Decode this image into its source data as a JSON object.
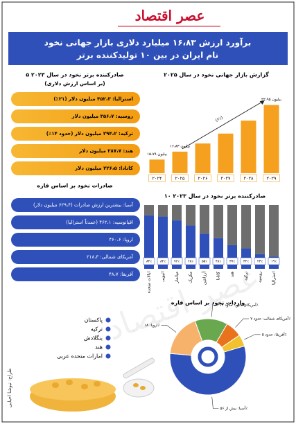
{
  "header": {
    "logo": "عصر اقتصاد",
    "title_lines": [
      "برآورد ارزش ۱۶،۸۳ میلیارد دلاری بازار جهانی نخود",
      "نام ایران در بین ۱۰ تولیدکننده برتر"
    ]
  },
  "exporters": {
    "title": "۵ صادرکننده برتر نخود در سال ۲۰۲۳",
    "subtitle": "(بر اساس ارزش دلاری)",
    "items": [
      "استرالیا: ۴۵۲،۳ میلیون دلار (۲۱٪)",
      "روسیه: ۳۵۶،۷ میلیون دلار",
      "ترکیه: ۲۹۴،۲ میلیون دلار (حدود ۱۴٪)",
      "هند: ۲۸۷،۷ میلیون دلار",
      "کانادا: ۲۲۶،۵ میلیون دلار"
    ]
  },
  "export_continents": {
    "title": "صادرات نخود بر اساس قاره",
    "items": [
      "آسیا: بیشترین ارزش صادرات (۶۲۹،۴ میلیون دلار)",
      "اقیانوسیه: ۴۶۲،۱ (عمدتاً استرالیا)",
      "اروپا: ۴۶۰،۶",
      "آمریکای شمالی: ۲۱۸،۳",
      "آفریقا: ۴۸،۷"
    ]
  },
  "importers": {
    "items": [
      "پاکستان",
      "ترکیه",
      "بنگلادش",
      "هند",
      "امارات متحده عربی"
    ]
  },
  "credit": "طراح: نیوشا احیایی",
  "chart_data": [
    {
      "type": "bar",
      "title": "گزارش بازار جهانی نخود در سال ۲۰۲۵",
      "categories": [
        "۲۰۲۴",
        "۲۰۲۵",
        "۲۰۲۶",
        "۲۰۲۷",
        "۲۰۲۸",
        "۲۰۲۹"
      ],
      "values": [
        15.79,
        16.83,
        17.9,
        19.2,
        20.9,
        22.95
      ],
      "value_labels": [
        "۱۵،۷۹ بیلیون",
        "۱۶،۸۳ بیلیون",
        null,
        null,
        null,
        "۲۲،۹۵ بیلیون"
      ],
      "annotation": "(۶٪)",
      "color": "#f5a01f",
      "ylim": [
        14,
        24
      ]
    },
    {
      "type": "stacked_bar",
      "title": "۱۰ صادرکننده برتر نخود در سال ۲۰۲۳",
      "categories": [
        "ایالات متحده",
        "اتیوپی",
        "میانمار",
        "مکزیک",
        "آرژانتین",
        "کانادا",
        "هند",
        "ترکیه",
        "روسیه",
        "استرالیا"
      ],
      "series": [
        {
          "color": "#2f50b8",
          "values": [
            84,
            82,
            76,
            68,
            55,
            48,
            37,
            32,
            23,
            19
          ],
          "value_labels": [
            "۸۴٪",
            "۸۲٪",
            "۷۶٪",
            "۶۸٪",
            "۵۵٪",
            "۴۸٪",
            "۳۷٪",
            "۳۲٪",
            "۲۳٪",
            "۱۹٪"
          ]
        },
        {
          "color": "#6e6e6e",
          "values": [
            16,
            18,
            24,
            32,
            45,
            52,
            63,
            68,
            77,
            81
          ]
        }
      ],
      "ylim": [
        0,
        100
      ]
    },
    {
      "type": "donut",
      "title": "واردات نخود بر اساس قاره",
      "categories": [
        "آمریکای لاتین: حدود ۱۴٪",
        "آمریکای شمالی: حدود ۷٪",
        "آفریقا: حدود ۵٪",
        "آسیا: بیش از ۵۶٪",
        "اروپا: ۱۸٪"
      ],
      "values": [
        14,
        7,
        5,
        56,
        18
      ],
      "colors": [
        "#6aa84f",
        "#e8731c",
        "#f2c12e",
        "#2f50b8",
        "#f6b26b"
      ]
    }
  ]
}
